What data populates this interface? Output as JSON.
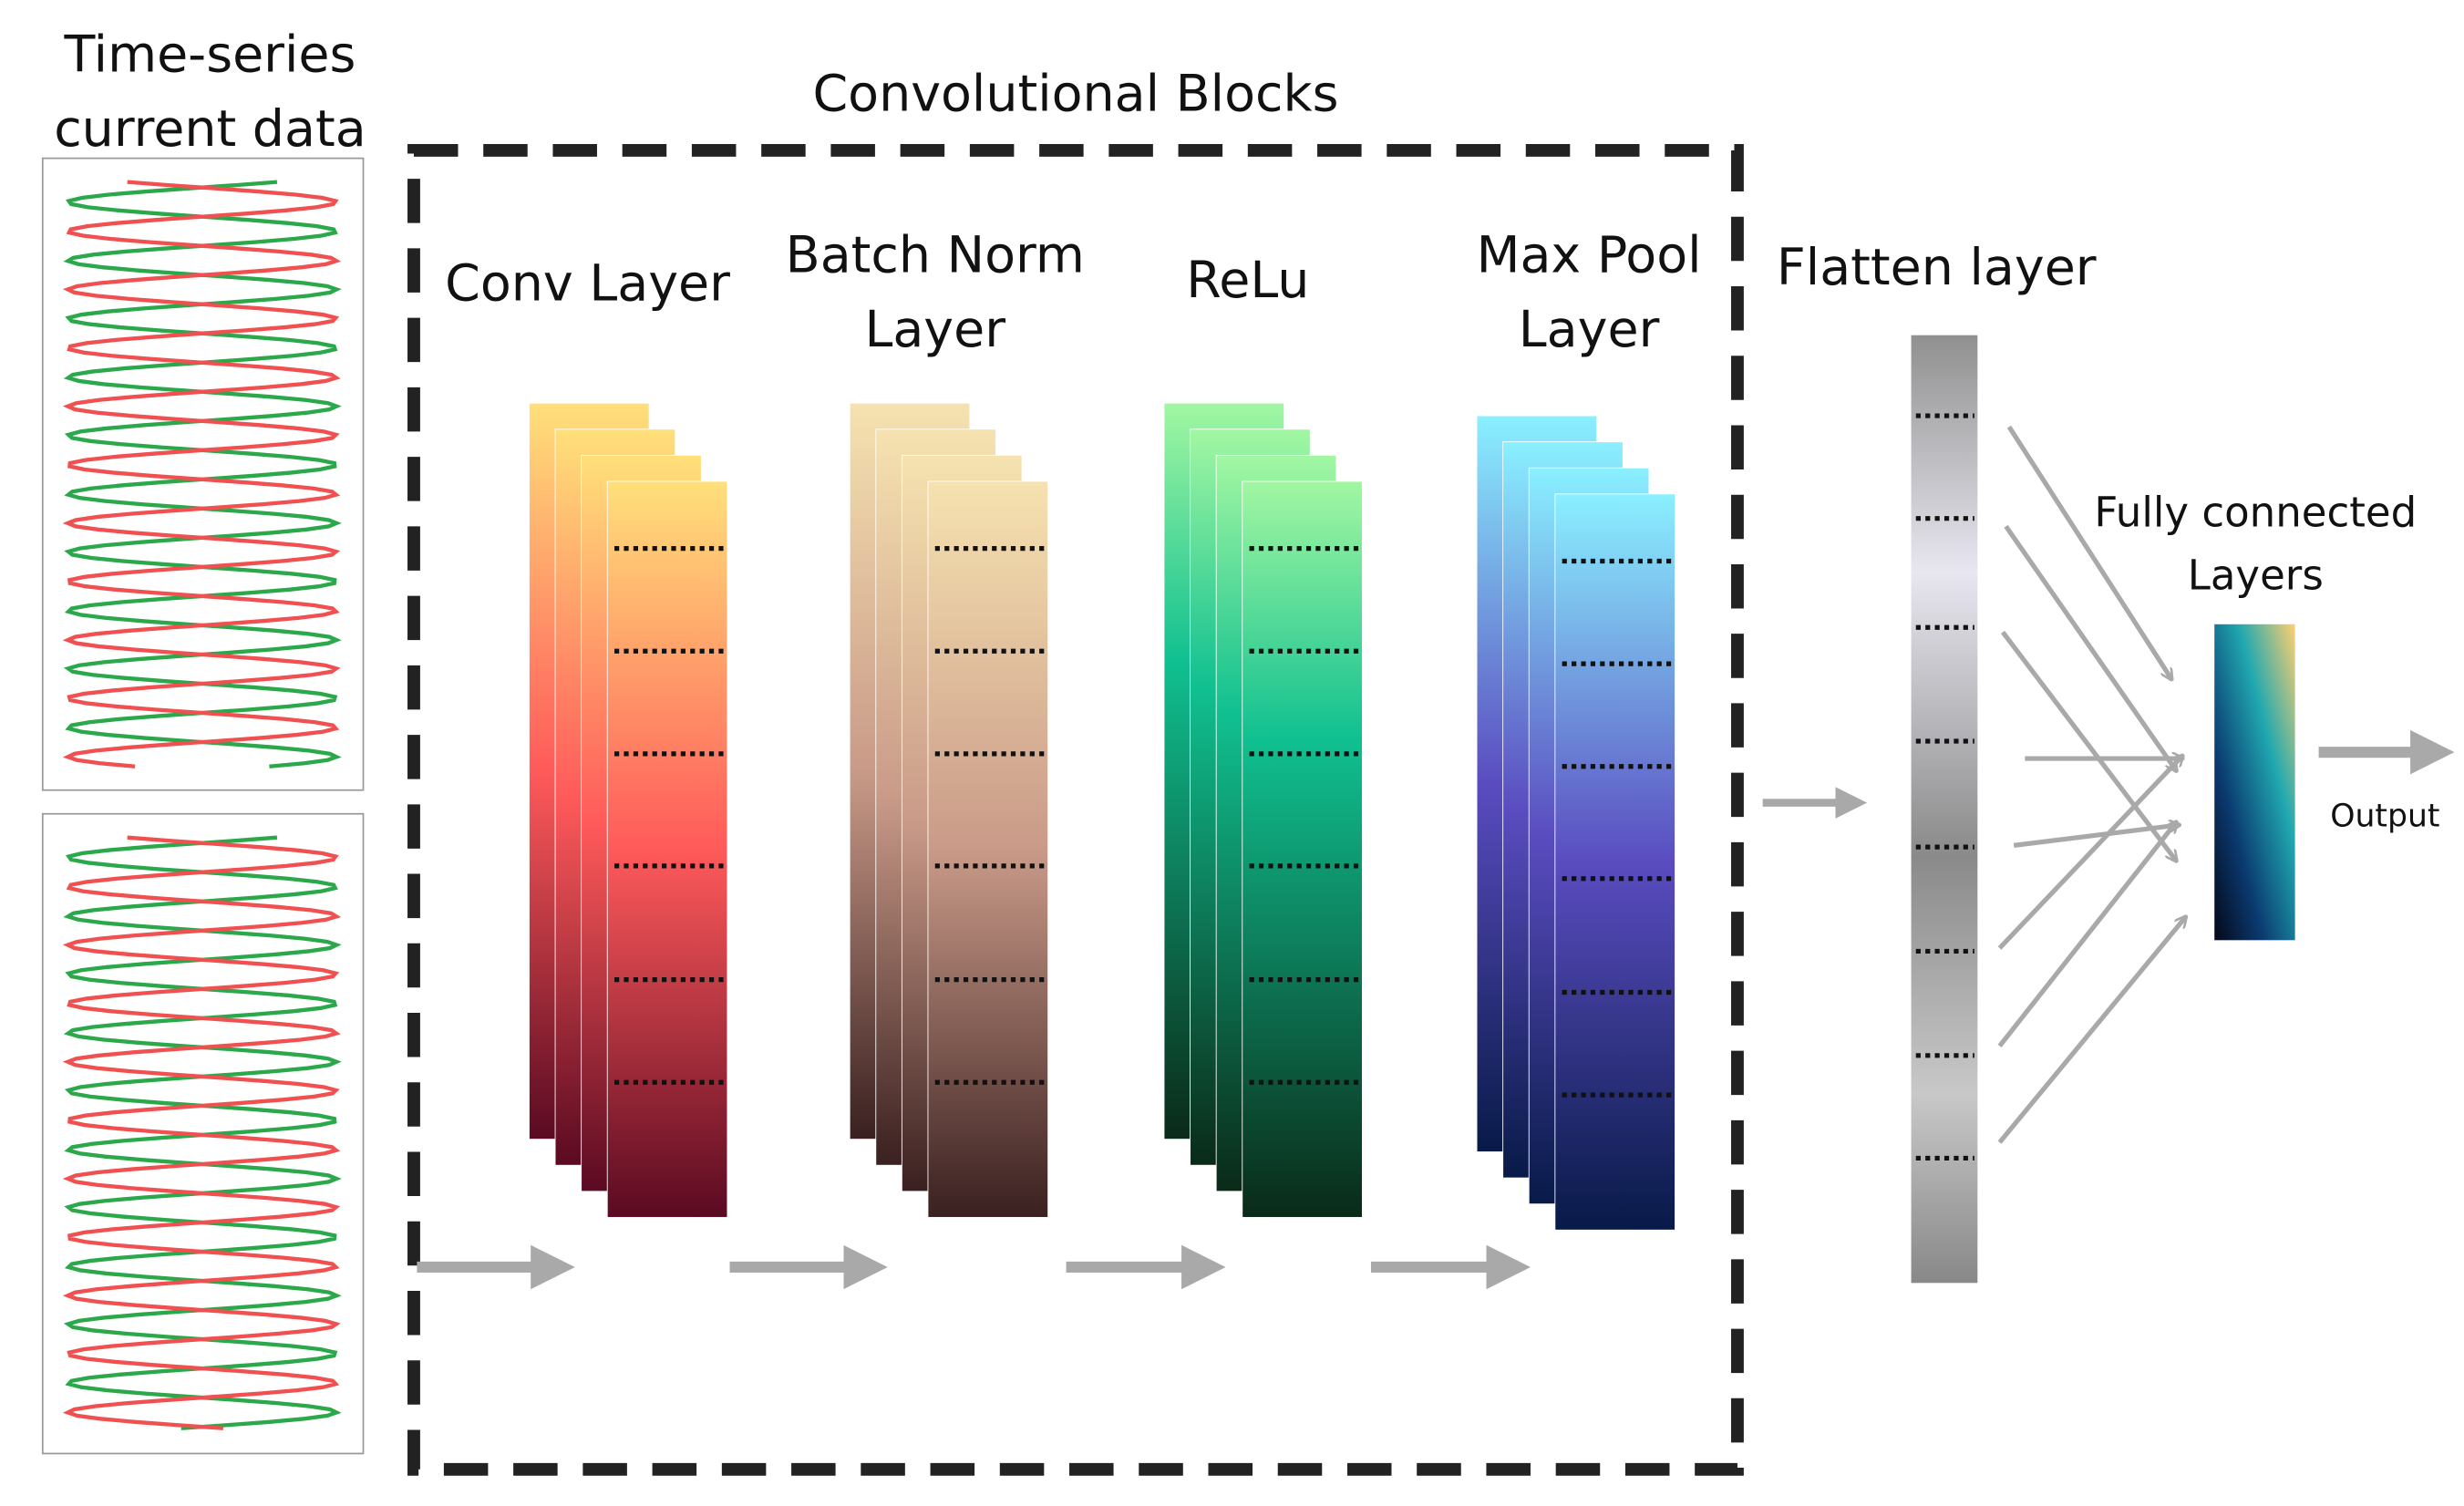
{
  "input": {
    "label": [
      "Time-series",
      "current data"
    ]
  },
  "conv_blocks": {
    "title": "Convolutional Blocks",
    "layers": [
      {
        "label": [
          "Conv Layer"
        ]
      },
      {
        "label": [
          "Batch Norm",
          "Layer"
        ]
      },
      {
        "label": [
          "ReLu"
        ]
      },
      {
        "label": [
          "Max Pool",
          "Layer"
        ]
      }
    ]
  },
  "flatten": {
    "label": [
      "Flatten layer"
    ]
  },
  "fully_connected": {
    "label": [
      "Fully connected",
      "Layers"
    ]
  },
  "output": {
    "label": "Output"
  }
}
